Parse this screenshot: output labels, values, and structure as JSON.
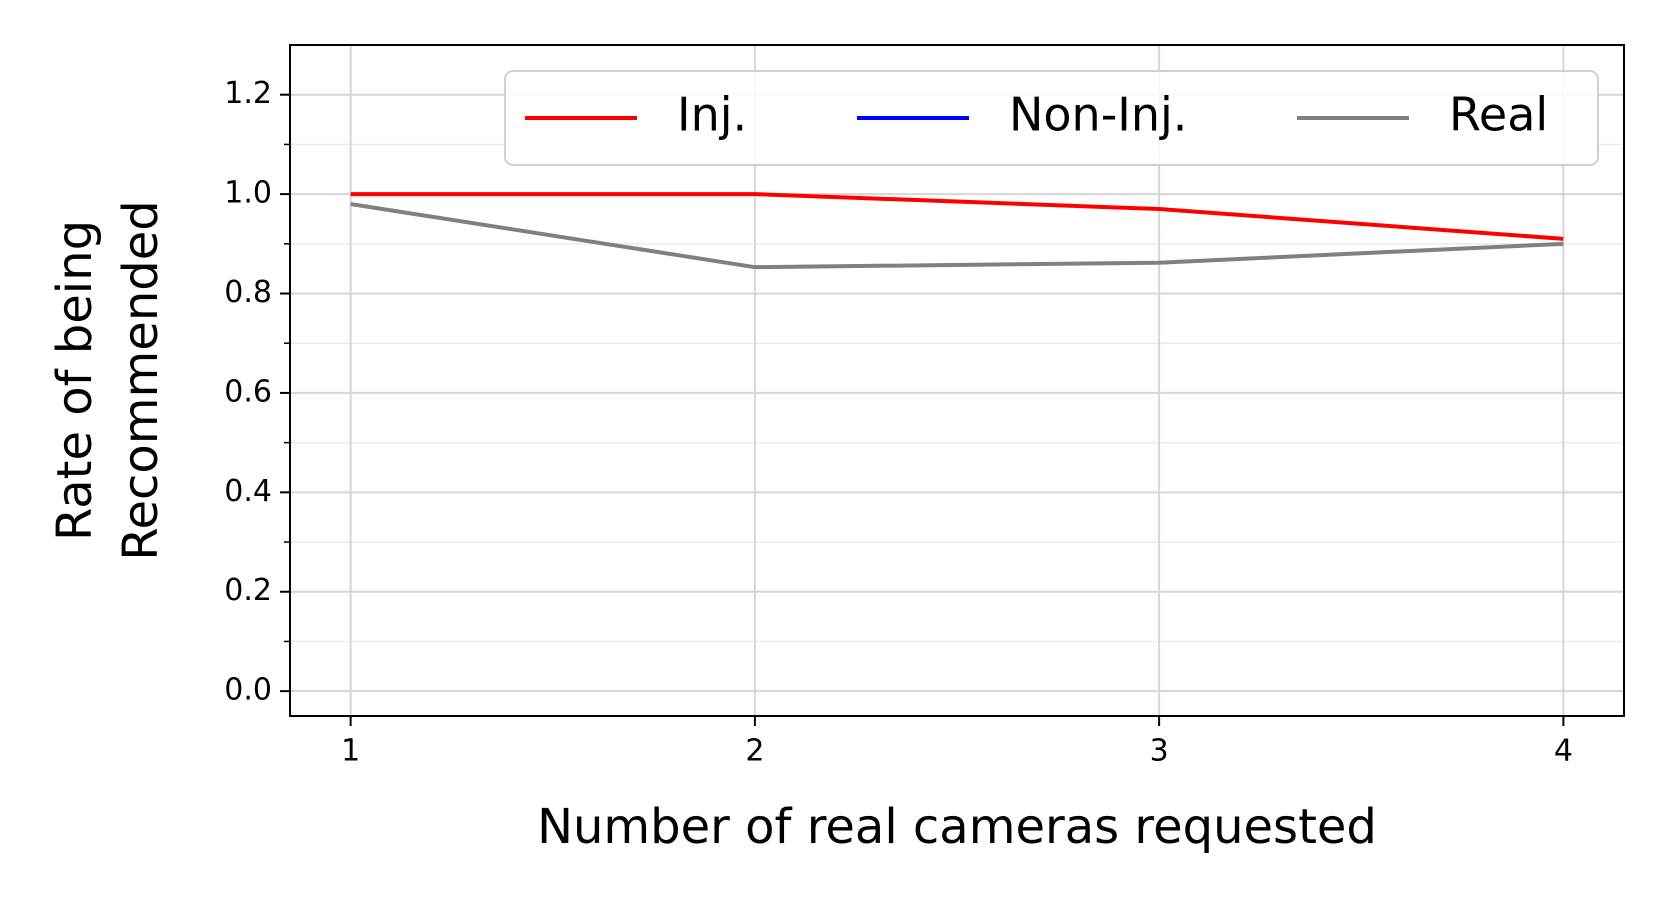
{
  "chart_data": {
    "type": "line",
    "xlabel": "Number of real cameras requested",
    "ylabel": [
      "Rate of being",
      "Recommended"
    ],
    "x": [
      1,
      2,
      3,
      4
    ],
    "series": [
      {
        "name": "Inj.",
        "color": "#ff0000",
        "values": [
          1.0,
          1.0,
          0.97,
          0.91
        ]
      },
      {
        "name": "Non-Inj.",
        "color": "#0000ff",
        "values": [
          null,
          null,
          null,
          null
        ]
      },
      {
        "name": "Real",
        "color": "#808080",
        "values": [
          0.98,
          0.853,
          0.862,
          0.9
        ]
      }
    ],
    "xlim": [
      0.85,
      4.15
    ],
    "xticks": [
      1,
      2,
      3,
      4
    ],
    "ylim": [
      -0.05,
      1.3
    ],
    "yticks": [
      {
        "value": 0,
        "label": "0.0"
      },
      0.2,
      0.4,
      0.6,
      0.8,
      {
        "value": 1,
        "label": "1.0"
      },
      1.2
    ],
    "yminorticks": [
      0.1,
      0.3,
      0.5,
      0.7,
      0.9,
      1.1
    ],
    "grid": true,
    "legend": "upper right"
  }
}
